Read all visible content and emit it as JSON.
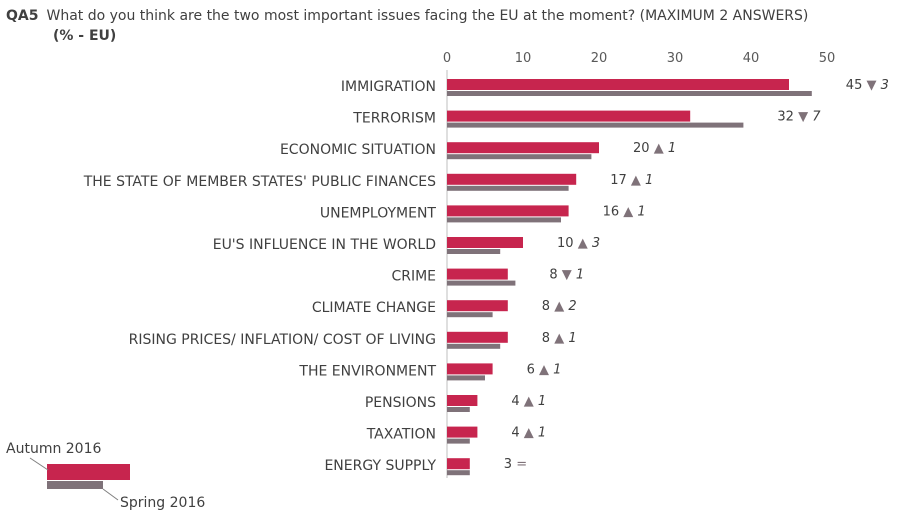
{
  "header": {
    "question_code": "QA5",
    "question_text": "What do you think are the two most important issues facing the EU at the moment? (MAXIMUM 2 ANSWERS)",
    "unit": "(% - EU)"
  },
  "chart_data": {
    "type": "bar",
    "orientation": "horizontal",
    "title": "What do you think are the two most important issues facing the EU at the moment? (MAXIMUM 2 ANSWERS)",
    "xlim": [
      0,
      50
    ],
    "ticks": [
      0,
      10,
      20,
      30,
      40,
      50
    ],
    "grid": false,
    "categories": [
      "IMMIGRATION",
      "TERRORISM",
      "ECONOMIC SITUATION",
      "THE STATE OF MEMBER STATES' PUBLIC FINANCES",
      "UNEMPLOYMENT",
      "EU'S INFLUENCE IN THE WORLD",
      "CRIME",
      "CLIMATE CHANGE",
      "RISING PRICES/ INFLATION/ COST OF LIVING",
      "THE ENVIRONMENT",
      "PENSIONS",
      "TAXATION",
      "ENERGY SUPPLY"
    ],
    "series": [
      {
        "name": "Autumn 2016",
        "color": "#c7254e",
        "values": [
          45,
          32,
          20,
          17,
          16,
          10,
          8,
          8,
          8,
          6,
          4,
          4,
          3
        ]
      },
      {
        "name": "Spring 2016",
        "color": "#7f7279",
        "values": [
          48,
          39,
          19,
          16,
          15,
          7,
          9,
          6,
          7,
          5,
          3,
          3,
          3
        ]
      }
    ],
    "labels": [
      {
        "value": "45",
        "arrow": "▼",
        "change": "3"
      },
      {
        "value": "32",
        "arrow": "▼",
        "change": "7"
      },
      {
        "value": "20",
        "arrow": "▲",
        "change": "1"
      },
      {
        "value": "17",
        "arrow": "▲",
        "change": "1"
      },
      {
        "value": "16",
        "arrow": "▲",
        "change": "1"
      },
      {
        "value": "10",
        "arrow": "▲",
        "change": "3"
      },
      {
        "value": "8",
        "arrow": "▼",
        "change": "1"
      },
      {
        "value": "8",
        "arrow": "▲",
        "change": "2"
      },
      {
        "value": "8",
        "arrow": "▲",
        "change": "1"
      },
      {
        "value": "6",
        "arrow": "▲",
        "change": "1"
      },
      {
        "value": "4",
        "arrow": "▲",
        "change": "1"
      },
      {
        "value": "4",
        "arrow": "▲",
        "change": "1"
      },
      {
        "value": "3",
        "arrow": "=",
        "change": ""
      }
    ],
    "legend": {
      "position": "bottom-left",
      "entries": [
        "Autumn 2016",
        "Spring 2016"
      ]
    }
  }
}
